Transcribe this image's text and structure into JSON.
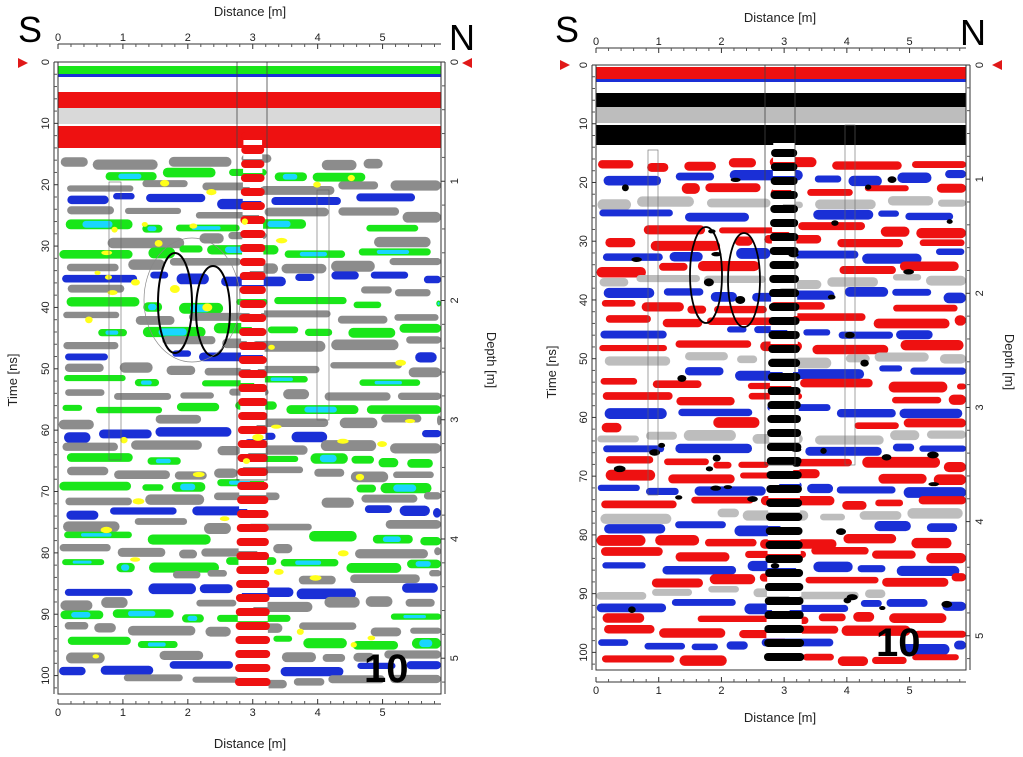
{
  "panels": [
    {
      "id": "left",
      "direction_left": "S",
      "direction_right": "N",
      "frame_label": "10",
      "colormap": "green-blue",
      "palette": {
        "bg": "#ffffff",
        "gray": "#8c8c8c",
        "light": "#d9d9d9",
        "green": "#19e619",
        "cyan": "#19d6ff",
        "blue": "#1a2fd6",
        "red": "#ee1111",
        "yellow": "#ffff1a"
      }
    },
    {
      "id": "right",
      "direction_left": "S",
      "direction_right": "N",
      "frame_label": "10",
      "colormap": "red-blue-black",
      "palette": {
        "bg": "#ffffff",
        "gray": "#bdbdbd",
        "red": "#ee1111",
        "blue": "#1a2fd6",
        "black": "#000000"
      }
    }
  ],
  "axis_text": {
    "x_label": "Distance [m]",
    "y_left_label": "Time [ns]",
    "y_right_label": "Depth [m]"
  },
  "chart_data": [
    {
      "type": "heatmap",
      "title": "",
      "xlabel": "Distance [m]",
      "ylabel": "Time [ns]",
      "y2label": "Depth [m]",
      "xlim": [
        0,
        5.9
      ],
      "ylim": [
        0,
        103
      ],
      "y2lim": [
        0,
        5.3
      ],
      "x_ticks": [
        0,
        1,
        2,
        3,
        4,
        5
      ],
      "y_ticks": [
        0,
        10,
        20,
        30,
        40,
        50,
        60,
        70,
        80,
        90,
        100
      ],
      "y2_ticks": [
        0,
        1,
        2,
        3,
        4,
        5
      ],
      "y_reversed": true,
      "features": {
        "hyperbola_apex_x": 3.0,
        "strong_reflector_band_x": [
          2.7,
          3.2
        ],
        "highlighted_anomalies": [
          {
            "x": 1.8,
            "y": 37
          },
          {
            "x": 2.3,
            "y": 40
          }
        ]
      }
    },
    {
      "type": "heatmap",
      "title": "",
      "xlabel": "Distance [m]",
      "ylabel": "Time [ns]",
      "y2label": "Depth [m]",
      "xlim": [
        0,
        5.9
      ],
      "ylim": [
        0,
        103
      ],
      "y2lim": [
        0,
        5.3
      ],
      "x_ticks": [
        0,
        1,
        2,
        3,
        4,
        5
      ],
      "y_ticks": [
        0,
        10,
        20,
        30,
        40,
        50,
        60,
        70,
        80,
        90,
        100
      ],
      "y2_ticks": [
        0,
        1,
        2,
        3,
        4,
        5
      ],
      "y_reversed": true,
      "features": {
        "hyperbola_apex_x": 3.0,
        "strong_reflector_band_x": [
          2.7,
          3.2
        ],
        "highlighted_anomalies": [
          {
            "x": 1.8,
            "y": 37
          },
          {
            "x": 2.3,
            "y": 40
          }
        ]
      }
    }
  ]
}
